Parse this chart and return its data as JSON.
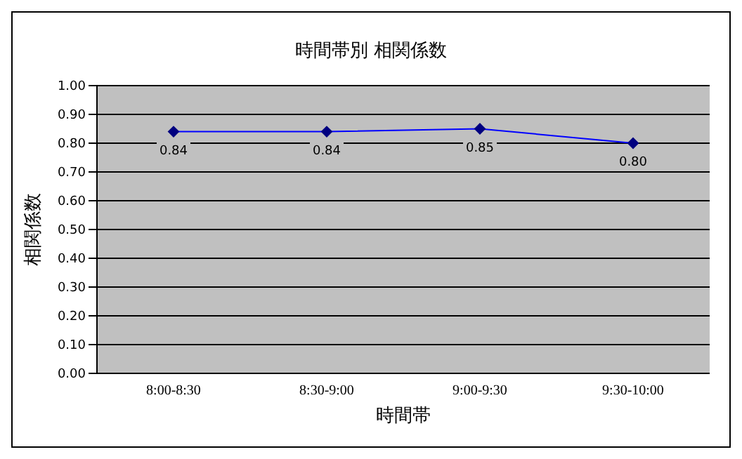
{
  "chart_data": {
    "type": "line",
    "title": "時間帯別 相関係数",
    "xlabel": "時間帯",
    "ylabel": "相関係数",
    "categories": [
      "8:00-8:30",
      "8:30-9:00",
      "9:00-9:30",
      "9:30-10:00"
    ],
    "series": [
      {
        "color": "#0000ff",
        "values": [
          0.84,
          0.84,
          0.85,
          0.8
        ],
        "value_labels": [
          "0.84",
          "0.84",
          "0.85",
          "0.80"
        ]
      }
    ],
    "ylim": [
      0,
      1
    ],
    "yticks": [
      {
        "value": 0,
        "label": "0.00"
      },
      {
        "value": 0.1,
        "label": "0.10"
      },
      {
        "value": 0.2,
        "label": "0.20"
      },
      {
        "value": 0.3,
        "label": "0.30"
      },
      {
        "value": 0.4,
        "label": "0.40"
      },
      {
        "value": 0.5,
        "label": "0.50"
      },
      {
        "value": 0.6,
        "label": "0.60"
      },
      {
        "value": 0.7,
        "label": "0.70"
      },
      {
        "value": 0.8,
        "label": "0.80"
      },
      {
        "value": 0.9,
        "label": "0.90"
      },
      {
        "value": 1,
        "label": "1.00"
      }
    ],
    "grid": "y",
    "marker": "diamond",
    "line_style": "solid"
  }
}
